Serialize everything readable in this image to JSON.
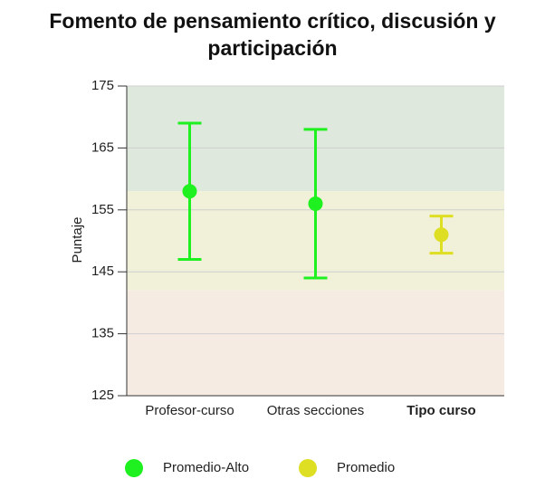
{
  "chart_data": {
    "type": "errorbar",
    "title": "Fomento de pensamiento crítico, discusión y participación",
    "x_label": "Tipo curso",
    "y_label": "Puntaje",
    "categories": [
      "Profesor-curso",
      "Otras secciones",
      null
    ],
    "series": [
      {
        "name": "Promedio-Alto",
        "color": "#1ff01f",
        "values": [
          158,
          156,
          null
        ],
        "errors": [
          11,
          12,
          null
        ]
      },
      {
        "name": "Promedio",
        "color": "#dede22",
        "values": [
          null,
          null,
          151
        ],
        "errors": [
          null,
          null,
          3
        ]
      }
    ],
    "bands": [
      {
        "from": 158,
        "to": 175,
        "color": "#dfe8dc"
      },
      {
        "from": 142,
        "to": 158,
        "color": "#f1f1d9"
      },
      {
        "from": 125,
        "to": 142,
        "color": "#f5ebe2"
      }
    ],
    "ylim": [
      125,
      175
    ],
    "yticks": [
      125,
      135,
      145,
      155,
      165,
      175
    ],
    "grid": true
  }
}
